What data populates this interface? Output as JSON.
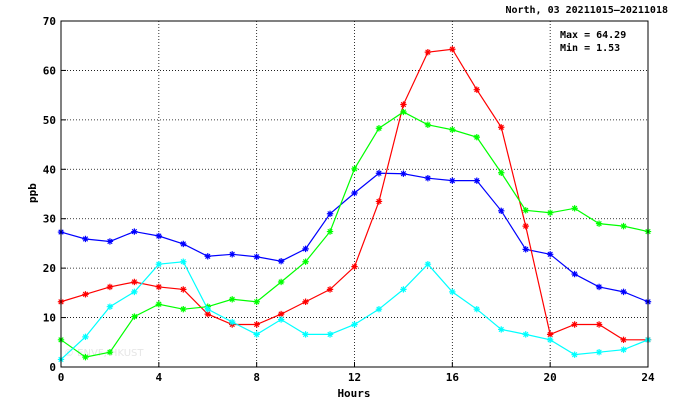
{
  "header": {
    "title": "North, 03 20211015—20211018",
    "max_label": "Max = 64.29",
    "min_label": "Min =  1.53"
  },
  "watermark": "© ENVF, HKUST",
  "chart_data": {
    "type": "line",
    "title": "North, 03 20211015—20211018",
    "xlabel": "Hours",
    "ylabel": "ppb",
    "xlim": [
      0,
      24
    ],
    "ylim": [
      0,
      70
    ],
    "xticks": [
      0,
      4,
      8,
      12,
      16,
      20,
      24
    ],
    "yticks": [
      0,
      10,
      20,
      30,
      40,
      50,
      60,
      70
    ],
    "grid": true,
    "x": [
      0,
      1,
      2,
      3,
      4,
      5,
      6,
      7,
      8,
      9,
      10,
      11,
      12,
      13,
      14,
      15,
      16,
      17,
      18,
      19,
      20,
      21,
      22,
      23,
      24
    ],
    "series": [
      {
        "color": "#0000ff",
        "marker": "asterisk",
        "values": [
          27.3,
          25.9,
          25.4,
          27.4,
          26.5,
          24.9,
          22.4,
          22.8,
          22.3,
          21.4,
          23.9,
          31.0,
          35.2,
          39.2,
          39.1,
          38.2,
          37.7,
          37.7,
          31.6,
          23.8,
          22.8,
          18.8,
          16.2,
          15.2,
          13.2
        ]
      },
      {
        "color": "#ff0000",
        "marker": "asterisk",
        "values": [
          13.2,
          14.7,
          16.2,
          17.2,
          16.2,
          15.7,
          10.7,
          8.6,
          8.6,
          10.7,
          13.2,
          15.7,
          20.3,
          33.5,
          53.1,
          63.7,
          64.29,
          56.1,
          48.5,
          28.5,
          6.6,
          8.6,
          8.6,
          5.5,
          5.5
        ]
      },
      {
        "color": "#00ff00",
        "marker": "asterisk",
        "values": [
          5.5,
          2.0,
          3.0,
          10.2,
          12.7,
          11.7,
          12.2,
          13.7,
          13.2,
          17.2,
          21.3,
          27.4,
          40.1,
          48.3,
          51.6,
          49.0,
          48.0,
          46.5,
          39.3,
          31.7,
          31.2,
          32.1,
          29.0,
          28.5,
          27.4
        ]
      },
      {
        "color": "#00ffff",
        "marker": "asterisk",
        "values": [
          1.53,
          6.1,
          12.2,
          15.2,
          20.8,
          21.3,
          11.7,
          9.1,
          6.6,
          9.6,
          6.6,
          6.6,
          8.6,
          11.7,
          15.7,
          20.8,
          15.2,
          11.7,
          7.6,
          6.6,
          5.5,
          2.5,
          3.0,
          3.5,
          5.5
        ]
      }
    ]
  }
}
